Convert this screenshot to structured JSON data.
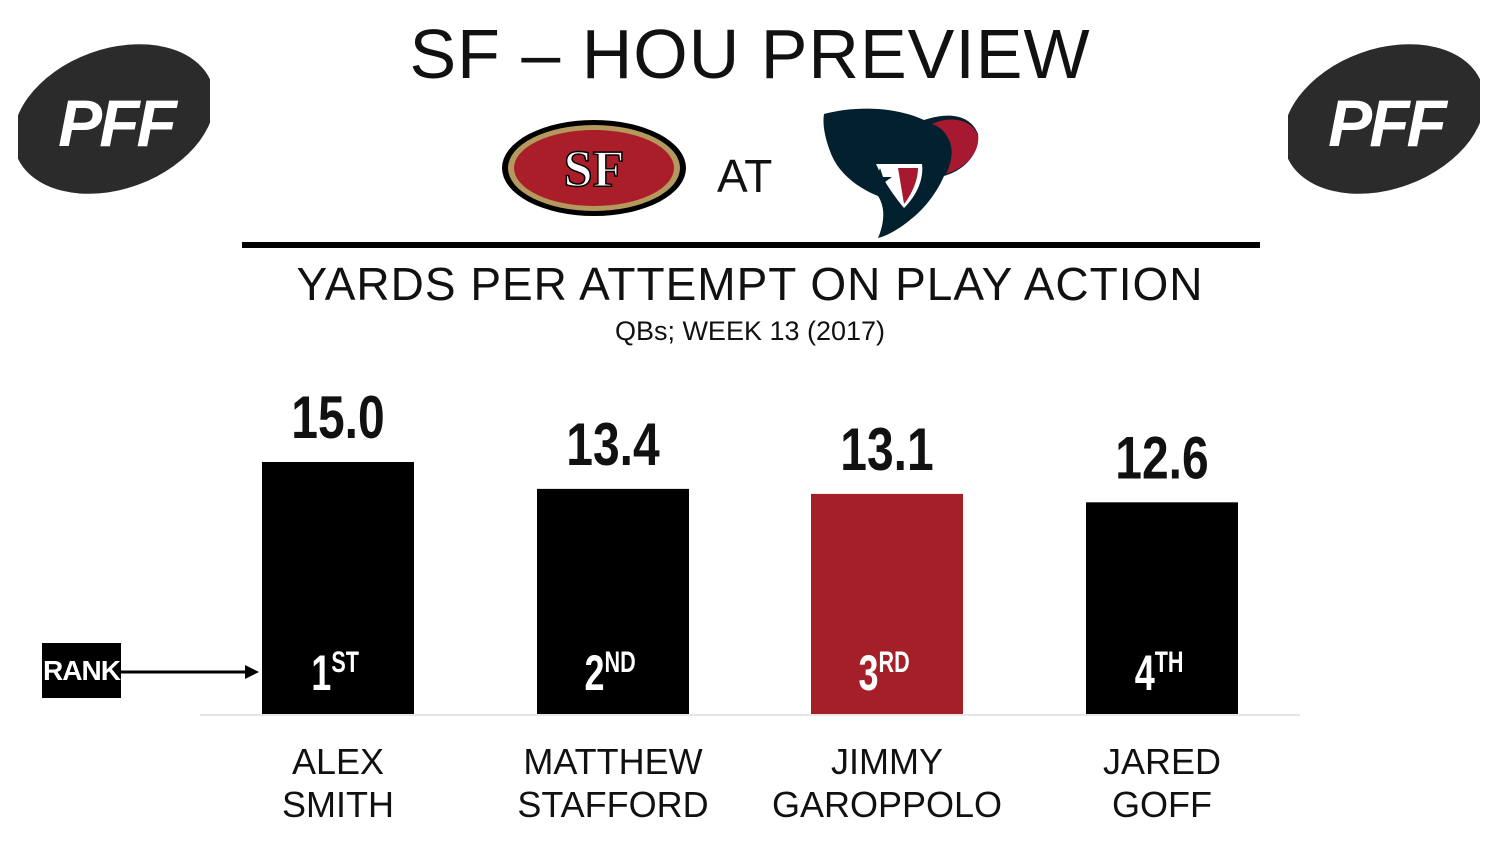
{
  "header": {
    "title": "SF – HOU PREVIEW",
    "at_label": "AT",
    "brand_logo_text": "PFF"
  },
  "colors": {
    "bar_default": "#000000",
    "bar_highlight": "#a51f28",
    "niners_red": "#aa1e2a",
    "niners_gold": "#b3995d",
    "texans_navy": "#03202f",
    "texans_red": "#a71930",
    "logo_gray": "#2b2b2b"
  },
  "rank_label": "RANK",
  "chart_data": {
    "type": "bar",
    "title": "YARDS PER ATTEMPT ON PLAY ACTION",
    "subtitle": "QBs; WEEK 13 (2017)",
    "categories": [
      [
        "ALEX",
        "SMITH"
      ],
      [
        "MATTHEW",
        "STAFFORD"
      ],
      [
        "JIMMY",
        "GAROPPOLO"
      ],
      [
        "JARED",
        "GOFF"
      ]
    ],
    "values": [
      15.0,
      13.4,
      13.1,
      12.6
    ],
    "value_labels": [
      "15.0",
      "13.4",
      "13.1",
      "12.6"
    ],
    "ranks": [
      {
        "num": "1",
        "suffix": "ST"
      },
      {
        "num": "2",
        "suffix": "ND"
      },
      {
        "num": "3",
        "suffix": "RD"
      },
      {
        "num": "4",
        "suffix": "TH"
      }
    ],
    "highlight_index": 2,
    "grid": false,
    "legend": "none"
  }
}
